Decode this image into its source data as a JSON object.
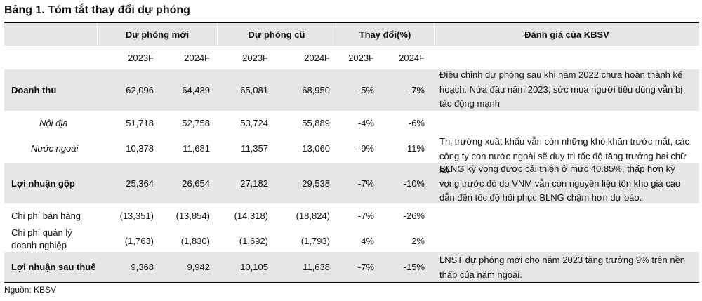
{
  "title": "Bảng 1. Tóm tắt thay đổi dự phóng",
  "header": {
    "du_phong_moi": "Dự phóng mới",
    "du_phong_cu": "Dự phóng cũ",
    "thay_doi": "Thay đổi(%)",
    "danh_gia": "Đánh giá của KBSV"
  },
  "years": [
    "2023F",
    "2024F",
    "2023F",
    "2024F",
    "2023F",
    "2024F"
  ],
  "rows": [
    {
      "label": "Doanh thu",
      "values": [
        "62,096",
        "64,439",
        "65,081",
        "68,950",
        "-5%",
        "-7%"
      ]
    },
    {
      "label": "Nội địa",
      "values": [
        "51,718",
        "52,758",
        "53,724",
        "55,889",
        "-4%",
        "-6%"
      ]
    },
    {
      "label": "Nước ngoài",
      "values": [
        "10,378",
        "11,681",
        "11,357",
        "13,060",
        "-9%",
        "-11%"
      ]
    },
    {
      "label": "Lợi nhuận gộp",
      "values": [
        "25,364",
        "26,654",
        "27,182",
        "29,538",
        "-7%",
        "-10%"
      ]
    },
    {
      "label": "Chi phí bán hàng",
      "values": [
        "(13,351)",
        "(13,854)",
        "(14,318)",
        "(18,824)",
        "-7%",
        "-26%"
      ]
    },
    {
      "label": "Chi phí quản lý doanh nghiệp",
      "values": [
        "(1,763)",
        "(1,830)",
        "(1,692)",
        "(1,793)",
        "4%",
        "2%"
      ]
    },
    {
      "label": "Lợi nhuận sau thuế",
      "values": [
        "9,368",
        "9,942",
        "10,105",
        "11,638",
        "-7%",
        "-15%"
      ]
    }
  ],
  "comments": [
    "Điều chỉnh dự phóng sau khi năm 2022 chưa hoàn thành kế hoạch. Nửa đầu năm 2023, sức mua người tiêu dùng vẫn bị tác động mạnh",
    "Thị trường xuất khẩu vẫn còn những khó khăn trước mắt, các công ty con nước ngoài sẽ duy trì tốc độ tăng trưởng hai chữ số",
    "BLNG kỳ vọng được cải thiện ở mức 40.85%, thấp hơn kỳ vọng trước đó do VNM vẫn còn nguyên liệu tồn kho giá cao dẫn đến tốc độ hồi phục BLNG chậm hơn dự báo.",
    "LNST dự phóng mới cho năm 2023 tăng trưởng 9% trên nền thấp của năm ngoái."
  ],
  "source": "Nguồn: KBSV"
}
